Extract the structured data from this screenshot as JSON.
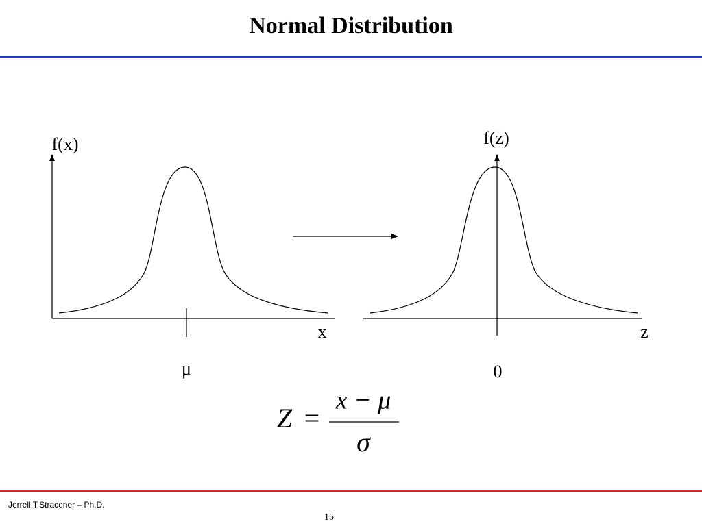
{
  "header": {
    "title": "Normal Distribution"
  },
  "left_graph": {
    "y_label": "f(x)",
    "x_label": "x",
    "tick_label": "μ"
  },
  "right_graph": {
    "y_label": "f(z)",
    "x_label": "z",
    "tick_label": "0"
  },
  "formula": {
    "lhs": "Z",
    "equals": "=",
    "numerator": "x − μ",
    "denominator": "σ"
  },
  "footer": {
    "author": "Jerrell T.Stracener – Ph.D.",
    "page": "15"
  }
}
